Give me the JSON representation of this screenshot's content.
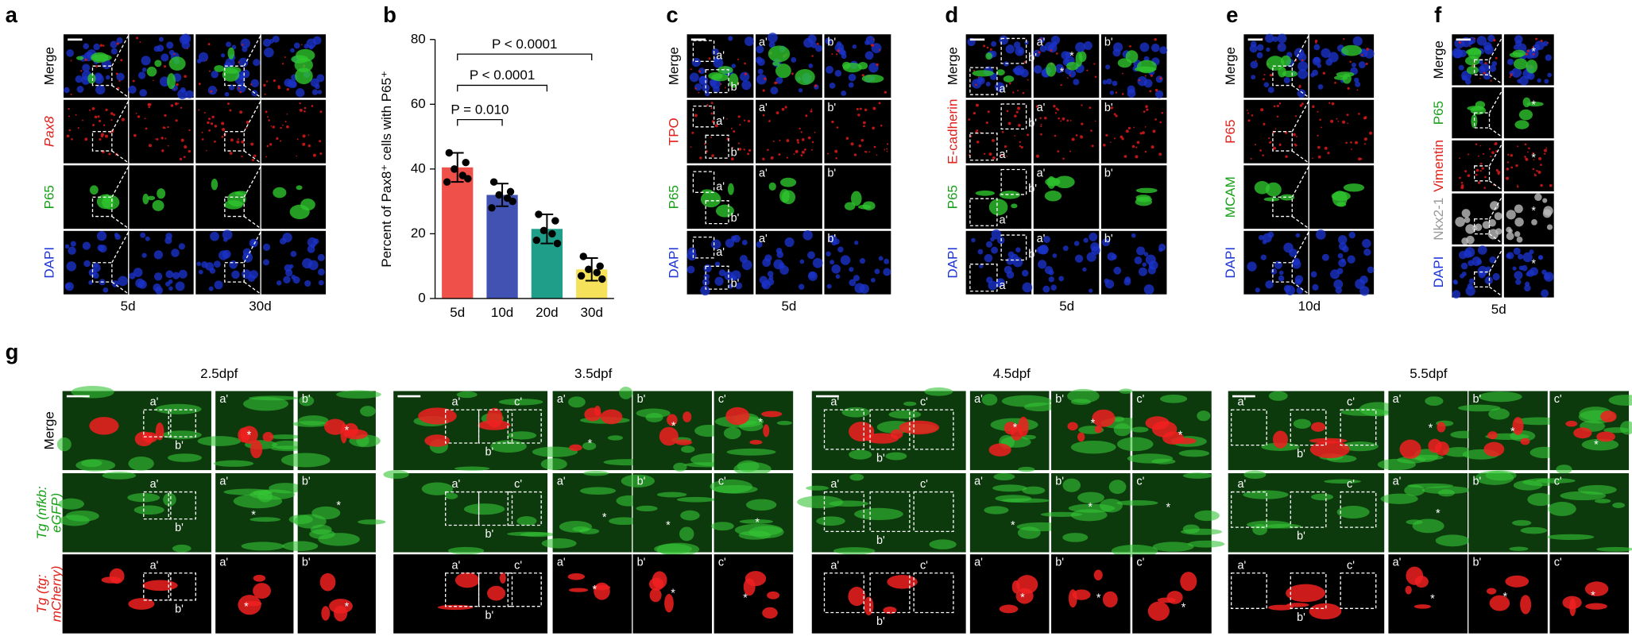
{
  "panels": [
    {
      "label": "a",
      "rows": [
        {
          "text": "Merge",
          "color": "#000000"
        },
        {
          "text": "Pax8",
          "color": "#e0201a",
          "italic": true
        },
        {
          "text": "P65",
          "color": "#19a019"
        },
        {
          "text": "DAPI",
          "color": "#1d35d6"
        }
      ],
      "columns": [
        "5d",
        "30d"
      ]
    },
    {
      "label": "c",
      "rows": [
        {
          "text": "Merge",
          "color": "#000000"
        },
        {
          "text": "TPO",
          "color": "#e0201a"
        },
        {
          "text": "P65",
          "color": "#19a019"
        },
        {
          "text": "DAPI",
          "color": "#1d35d6"
        }
      ],
      "columns": [
        "5d"
      ],
      "insets": [
        "a'",
        "b'"
      ]
    },
    {
      "label": "d",
      "rows": [
        {
          "text": "Merge",
          "color": "#000000"
        },
        {
          "text": "E-cadherin",
          "color": "#e0201a"
        },
        {
          "text": "P65",
          "color": "#19a019"
        },
        {
          "text": "DAPI",
          "color": "#1d35d6"
        }
      ],
      "columns": [
        "5d"
      ],
      "insets": [
        "a'",
        "b'"
      ],
      "asterisk": "*"
    },
    {
      "label": "e",
      "rows": [
        {
          "text": "Merge",
          "color": "#000000"
        },
        {
          "text": "P65",
          "color": "#e0201a"
        },
        {
          "text": "MCAM",
          "color": "#19a019"
        },
        {
          "text": "DAPI",
          "color": "#1d35d6"
        }
      ],
      "columns": [
        "10d"
      ]
    },
    {
      "label": "f",
      "rows": [
        {
          "text": "Merge",
          "color": "#000000"
        },
        {
          "text": "P65",
          "color": "#19a019"
        },
        {
          "text": "Vimentin",
          "color": "#e0201a"
        },
        {
          "text": "Nkx2-1",
          "color": "#999999"
        },
        {
          "text": "DAPI",
          "color": "#1d35d6"
        }
      ],
      "columns": [
        "5d"
      ],
      "asterisk": "*"
    }
  ],
  "chart_data": {
    "type": "bar",
    "label": "b",
    "ylabel": "Percent of Pax8⁺ cells with P65⁺",
    "categories": [
      "5d",
      "10d",
      "20d",
      "30d"
    ],
    "values": [
      40.5,
      32,
      21.5,
      9
    ],
    "errors": [
      4.5,
      3.5,
      4.5,
      3.5
    ],
    "points": [
      [
        45,
        42,
        40,
        38,
        36,
        37
      ],
      [
        36,
        33,
        32,
        31,
        28,
        30
      ],
      [
        26,
        24,
        21,
        20,
        18,
        17
      ],
      [
        13,
        10,
        9,
        8,
        7,
        6
      ]
    ],
    "colors": [
      "#f0504a",
      "#4152b2",
      "#1f9e8a",
      "#f6e25a"
    ],
    "ylim": [
      0,
      80
    ],
    "yticks": [
      0,
      20,
      40,
      60,
      80
    ],
    "comparisons": [
      "P = 0.010",
      "P < 0.0001",
      "P < 0.0001"
    ]
  },
  "zebrafish": {
    "label": "g",
    "rows": [
      {
        "lines": [
          "Merge"
        ],
        "color": "#000000"
      },
      {
        "lines": [
          "Tg (nfkb:",
          "eGFP)"
        ],
        "color": "#19a019",
        "italic": true
      },
      {
        "lines": [
          "Tg (tg:",
          "mCherry)"
        ],
        "color": "#e0201a",
        "italic": true
      }
    ],
    "groups": [
      {
        "title": "2.5dpf",
        "insets": [
          "a'",
          "b'"
        ]
      },
      {
        "title": "3.5dpf",
        "insets": [
          "a'",
          "b'",
          "c'"
        ]
      },
      {
        "title": "4.5dpf",
        "insets": [
          "a'",
          "b'",
          "c'"
        ]
      },
      {
        "title": "5.5dpf",
        "insets": [
          "a'",
          "b'",
          "c'"
        ]
      }
    ],
    "asterisk": "*"
  }
}
